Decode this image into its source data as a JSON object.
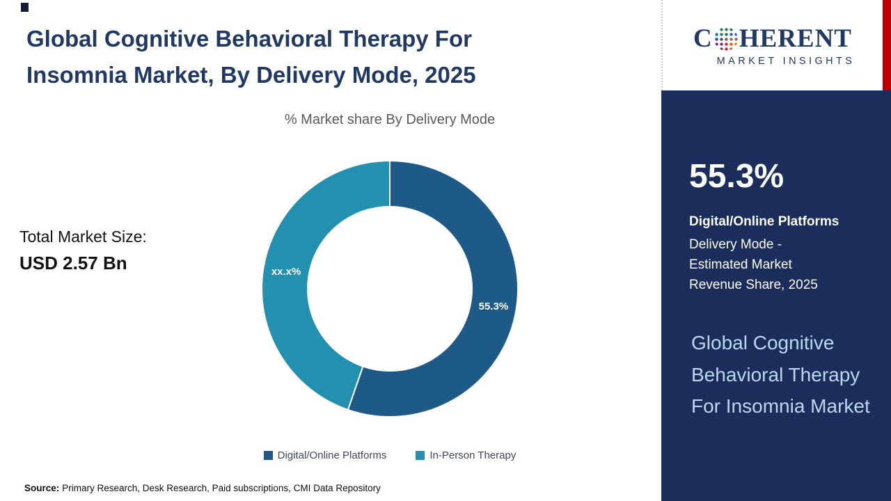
{
  "page": {
    "title_line1": "Global Cognitive Behavioral Therapy For",
    "title_line2": "Insomnia Market, By Delivery Mode, 2025"
  },
  "market": {
    "total_label": "Total Market Size:",
    "total_value": "USD 2.57 Bn"
  },
  "chart_data": {
    "type": "pie",
    "donut": true,
    "title": "% Market share By Delivery Mode",
    "start_angle_deg": 0,
    "slices": [
      {
        "label": "Digital/Online Platforms",
        "value": 55.3,
        "data_label": "55.3%",
        "color": "#1e5a88"
      },
      {
        "label": "In-Person Therapy",
        "value": 44.7,
        "data_label": "xx.x%",
        "color": "#2290ae"
      }
    ],
    "legend_position": "bottom",
    "inner_radius_ratio": 0.64
  },
  "source": {
    "label": "Source:",
    "text": "Primary Research, Desk Research, Paid subscriptions, CMI Data Repository"
  },
  "logo": {
    "brand_prefix": "C",
    "brand_suffix": "HERENT",
    "subtitle": "MARKET INSIGHTS",
    "brand_color": "#1f3864",
    "accent_color": "#c00000"
  },
  "sidebar": {
    "background_color": "#1b2d5b",
    "stat_value": "55.3%",
    "stat_title": "Digital/Online Platforms",
    "stat_description": "Delivery Mode - Estimated Market Revenue Share, 2025",
    "market_title": "Global Cognitive Behavioral Therapy For Insomnia Market",
    "light_text_color": "#bdd7ee"
  }
}
